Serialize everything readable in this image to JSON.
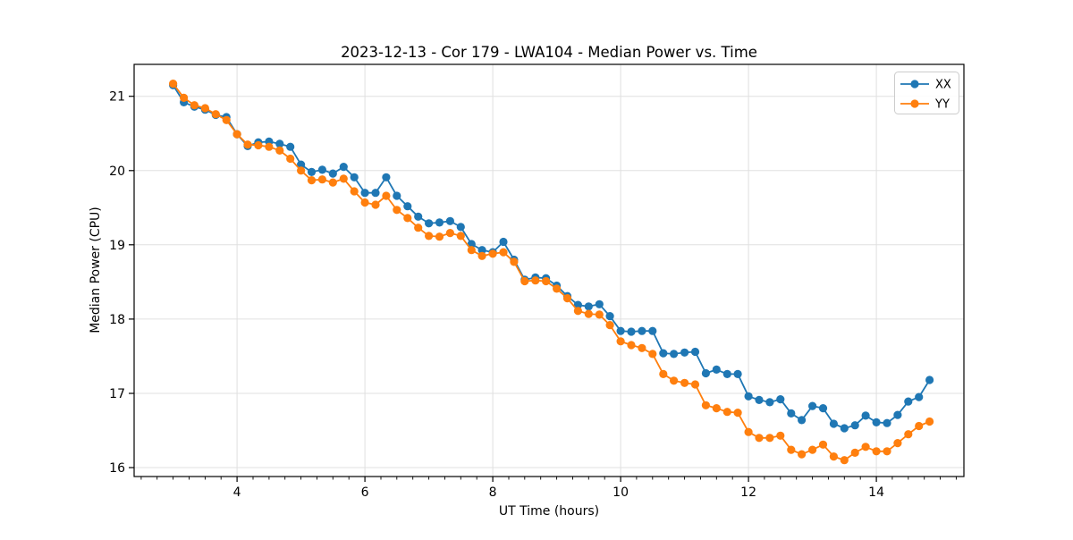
{
  "figure": {
    "background_color": "#ffffff",
    "grid_color": "#e0e0e0",
    "spine_color": "#000000"
  },
  "chart_data": {
    "type": "line",
    "title": "2023-12-13 - Cor 179 - LWA104 - Median Power vs. Time",
    "xlabel": "UT Time (hours)",
    "ylabel": "Median Power (CPU)",
    "xlim": [
      2.39,
      15.37
    ],
    "ylim": [
      15.88,
      21.43
    ],
    "x_ticks": [
      4,
      6,
      8,
      10,
      12,
      14
    ],
    "x_minor_step": 0.25,
    "y_ticks": [
      16,
      17,
      18,
      19,
      20,
      21
    ],
    "grid": true,
    "legend": {
      "position": "upper right",
      "entries": [
        "XX",
        "YY"
      ]
    },
    "x": [
      3.0,
      3.167,
      3.333,
      3.5,
      3.667,
      3.833,
      4.0,
      4.167,
      4.333,
      4.5,
      4.667,
      4.833,
      5.0,
      5.167,
      5.333,
      5.5,
      5.667,
      5.833,
      6.0,
      6.167,
      6.333,
      6.5,
      6.667,
      6.833,
      7.0,
      7.167,
      7.333,
      7.5,
      7.667,
      7.833,
      8.0,
      8.167,
      8.333,
      8.5,
      8.667,
      8.833,
      9.0,
      9.167,
      9.333,
      9.5,
      9.667,
      9.833,
      10.0,
      10.167,
      10.333,
      10.5,
      10.667,
      10.833,
      11.0,
      11.167,
      11.333,
      11.5,
      11.667,
      11.833,
      12.0,
      12.167,
      12.333,
      12.5,
      12.667,
      12.833,
      13.0,
      13.167,
      13.333,
      13.5,
      13.667,
      13.833,
      14.0,
      14.167,
      14.333,
      14.5,
      14.667,
      14.833
    ],
    "series": [
      {
        "name": "XX",
        "color": "#1f77b4",
        "marker": "circle",
        "values": [
          21.15,
          20.92,
          20.86,
          20.82,
          20.75,
          20.72,
          20.49,
          20.33,
          20.38,
          20.39,
          20.36,
          20.32,
          20.08,
          19.98,
          20.01,
          19.96,
          20.05,
          19.91,
          19.7,
          19.7,
          19.91,
          19.66,
          19.52,
          19.38,
          19.29,
          19.3,
          19.32,
          19.24,
          19.01,
          18.93,
          18.9,
          19.04,
          18.8,
          18.53,
          18.56,
          18.55,
          18.45,
          18.31,
          18.19,
          18.17,
          18.2,
          18.04,
          17.84,
          17.83,
          17.84,
          17.84,
          17.54,
          17.53,
          17.55,
          17.56,
          17.27,
          17.32,
          17.26,
          17.26,
          16.96,
          16.91,
          16.88,
          16.92,
          16.73,
          16.64,
          16.83,
          16.8,
          16.59,
          16.53,
          16.57,
          16.7,
          16.61,
          16.6,
          16.71,
          16.89,
          16.95,
          17.18
        ]
      },
      {
        "name": "YY",
        "color": "#ff7f0e",
        "marker": "circle",
        "values": [
          21.17,
          20.98,
          20.88,
          20.84,
          20.76,
          20.68,
          20.49,
          20.35,
          20.34,
          20.32,
          20.27,
          20.16,
          20.0,
          19.87,
          19.88,
          19.84,
          19.89,
          19.72,
          19.57,
          19.54,
          19.66,
          19.47,
          19.36,
          19.23,
          19.12,
          19.11,
          19.16,
          19.12,
          18.93,
          18.85,
          18.88,
          18.9,
          18.77,
          18.51,
          18.52,
          18.51,
          18.41,
          18.28,
          18.11,
          18.07,
          18.06,
          17.92,
          17.7,
          17.65,
          17.61,
          17.53,
          17.26,
          17.17,
          17.14,
          17.12,
          16.84,
          16.8,
          16.75,
          16.74,
          16.48,
          16.4,
          16.4,
          16.43,
          16.24,
          16.18,
          16.24,
          16.31,
          16.15,
          16.1,
          16.2,
          16.28,
          16.22,
          16.22,
          16.33,
          16.45,
          16.56,
          16.62
        ]
      }
    ]
  }
}
